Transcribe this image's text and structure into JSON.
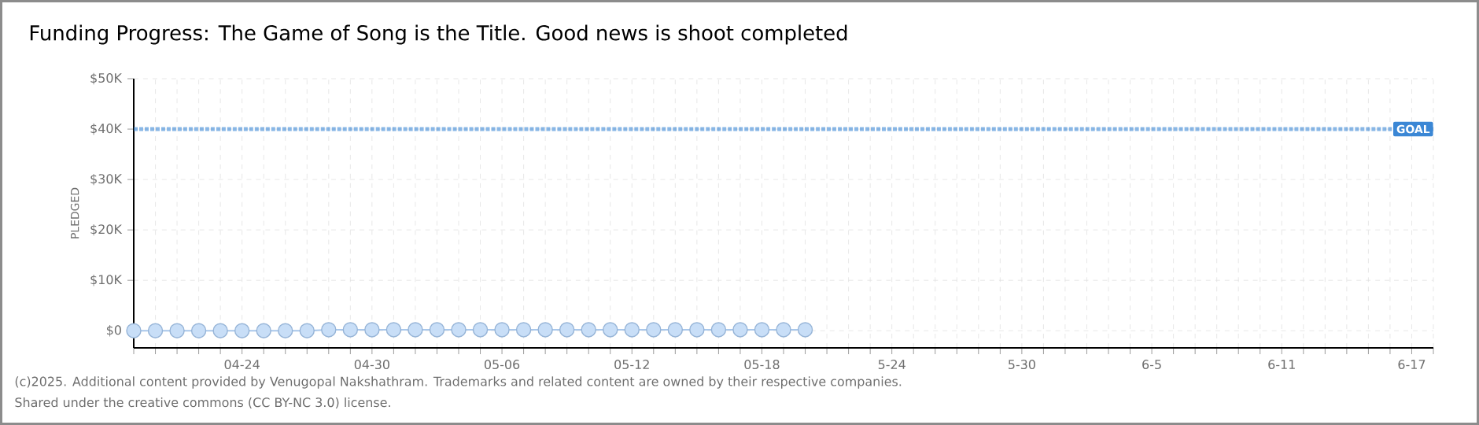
{
  "chart_data": {
    "type": "line",
    "title": "Funding Progress: The Game of Song is the Title. Good news is shoot completed",
    "ylabel": "PLEDGED",
    "x": [
      "2025-04-19",
      "2025-04-20",
      "2025-04-21",
      "2025-04-22",
      "2025-04-23",
      "2025-04-24",
      "2025-04-25",
      "2025-04-26",
      "2025-04-27",
      "2025-04-28",
      "2025-04-29",
      "2025-04-30",
      "2025-05-01",
      "2025-05-02",
      "2025-05-03",
      "2025-05-04",
      "2025-05-05",
      "2025-05-06",
      "2025-05-07",
      "2025-05-08",
      "2025-05-09",
      "2025-05-10",
      "2025-05-11",
      "2025-05-12",
      "2025-05-13",
      "2025-05-14",
      "2025-05-15",
      "2025-05-16",
      "2025-05-17",
      "2025-05-18",
      "2025-05-19",
      "2025-05-20"
    ],
    "values": [
      0,
      0,
      0,
      0,
      0,
      0,
      0,
      0,
      0,
      200,
      200,
      200,
      200,
      200,
      200,
      200,
      200,
      200,
      200,
      200,
      200,
      200,
      200,
      200,
      200,
      200,
      200,
      200,
      200,
      200,
      200,
      200
    ],
    "color": "#a9c7ea",
    "marker": "circle",
    "line_style": "solid",
    "grid": true,
    "xlim": [
      "2025-04-19",
      "2025-06-18"
    ],
    "xticks": [
      {
        "value": "2025-04-19",
        "label": null
      },
      {
        "value": "2025-04-20",
        "label": null
      },
      {
        "value": "2025-04-21",
        "label": null
      },
      {
        "value": "2025-04-22",
        "label": null
      },
      {
        "value": "2025-04-23",
        "label": null
      },
      {
        "value": "2025-04-24",
        "label": "04-24"
      },
      {
        "value": "2025-04-25",
        "label": null
      },
      {
        "value": "2025-04-26",
        "label": null
      },
      {
        "value": "2025-04-27",
        "label": null
      },
      {
        "value": "2025-04-28",
        "label": null
      },
      {
        "value": "2025-04-29",
        "label": null
      },
      {
        "value": "2025-04-30",
        "label": "04-30"
      },
      {
        "value": "2025-05-01",
        "label": null
      },
      {
        "value": "2025-05-02",
        "label": null
      },
      {
        "value": "2025-05-03",
        "label": null
      },
      {
        "value": "2025-05-04",
        "label": null
      },
      {
        "value": "2025-05-05",
        "label": null
      },
      {
        "value": "2025-05-06",
        "label": "05-06"
      },
      {
        "value": "2025-05-07",
        "label": null
      },
      {
        "value": "2025-05-08",
        "label": null
      },
      {
        "value": "2025-05-09",
        "label": null
      },
      {
        "value": "2025-05-10",
        "label": null
      },
      {
        "value": "2025-05-11",
        "label": null
      },
      {
        "value": "2025-05-12",
        "label": "05-12"
      },
      {
        "value": "2025-05-13",
        "label": null
      },
      {
        "value": "2025-05-14",
        "label": null
      },
      {
        "value": "2025-05-15",
        "label": null
      },
      {
        "value": "2025-05-16",
        "label": null
      },
      {
        "value": "2025-05-17",
        "label": null
      },
      {
        "value": "2025-05-18",
        "label": "05-18"
      },
      {
        "value": "2025-05-19",
        "label": null
      },
      {
        "value": "2025-05-20",
        "label": null
      },
      {
        "value": "2025-05-21",
        "label": null
      },
      {
        "value": "2025-05-22",
        "label": null
      },
      {
        "value": "2025-05-23",
        "label": null
      },
      {
        "value": "2025-05-24",
        "label": "5-24"
      },
      {
        "value": "2025-05-25",
        "label": null
      },
      {
        "value": "2025-05-26",
        "label": null
      },
      {
        "value": "2025-05-27",
        "label": null
      },
      {
        "value": "2025-05-28",
        "label": null
      },
      {
        "value": "2025-05-29",
        "label": null
      },
      {
        "value": "2025-05-30",
        "label": "5-30"
      },
      {
        "value": "2025-05-31",
        "label": null
      },
      {
        "value": "2025-06-01",
        "label": null
      },
      {
        "value": "2025-06-02",
        "label": null
      },
      {
        "value": "2025-06-03",
        "label": null
      },
      {
        "value": "2025-06-04",
        "label": null
      },
      {
        "value": "2025-06-05",
        "label": "6-5"
      },
      {
        "value": "2025-06-06",
        "label": null
      },
      {
        "value": "2025-06-07",
        "label": null
      },
      {
        "value": "2025-06-08",
        "label": null
      },
      {
        "value": "2025-06-09",
        "label": null
      },
      {
        "value": "2025-06-10",
        "label": null
      },
      {
        "value": "2025-06-11",
        "label": "6-11"
      },
      {
        "value": "2025-06-12",
        "label": null
      },
      {
        "value": "2025-06-13",
        "label": null
      },
      {
        "value": "2025-06-14",
        "label": null
      },
      {
        "value": "2025-06-15",
        "label": null
      },
      {
        "value": "2025-06-16",
        "label": null
      },
      {
        "value": "2025-06-17",
        "label": "6-17"
      },
      {
        "value": "2025-06-18",
        "label": null
      }
    ],
    "ylim": [
      -3400,
      50000
    ],
    "yticks": [
      {
        "value": 0,
        "label": "$0"
      },
      {
        "value": 10000,
        "label": "$10K"
      },
      {
        "value": 20000,
        "label": "$20K"
      },
      {
        "value": 30000,
        "label": "$30K"
      },
      {
        "value": 40000,
        "label": "$40K"
      },
      {
        "value": 50000,
        "label": "$50K"
      }
    ],
    "ref_lines": [
      {
        "axis": "y",
        "value": 40000,
        "label": "GOAL",
        "color": "#3b87d5",
        "line_style": "dotted"
      }
    ],
    "annotations": [
      "(c)2025. Additional content provided by Venugopal Nakshathram. Trademarks and related content are owned by their respective companies.",
      "Shared under the creative commons (CC BY-NC 3.0) license."
    ]
  }
}
